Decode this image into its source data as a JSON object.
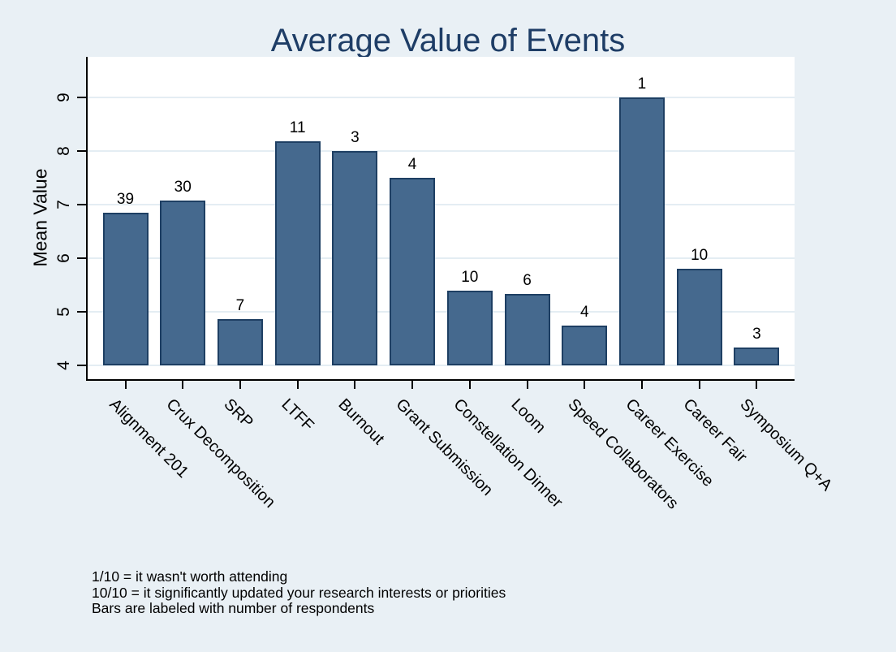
{
  "chart_data": {
    "type": "bar",
    "title": "Average Value of Events",
    "xlabel": "",
    "ylabel": "Mean Value",
    "ylim": [
      4,
      9.75
    ],
    "yticks": [
      4,
      5,
      6,
      7,
      8,
      9
    ],
    "grid": true,
    "legend": "none",
    "categories": [
      "Alignment 201",
      "Crux Decomposition",
      "SRP",
      "LTFF",
      "Burnout",
      "Grant Submission",
      "Constellation Dinner",
      "Loom",
      "Speed Collaborators",
      "Career Exercise",
      "Career Fair",
      "Symposium Q+A"
    ],
    "values": [
      6.85,
      7.07,
      4.86,
      8.18,
      8.0,
      7.5,
      5.4,
      5.33,
      4.75,
      9.0,
      5.8,
      4.33
    ],
    "bar_labels": [
      "39",
      "30",
      "7",
      "11",
      "3",
      "4",
      "10",
      "6",
      "4",
      "1",
      "10",
      "3"
    ],
    "bar_labels_meaning": "number of respondents",
    "colors": {
      "page_background": "#e9f0f5",
      "plot_background": "#ffffff",
      "gridline": "#e4edf3",
      "bar_fill": "#45698e",
      "bar_border": "#1e3f63",
      "title": "#1e3d66",
      "axis": "#000000",
      "text": "#000000"
    }
  },
  "notes": [
    "1/10 = it wasn't worth attending",
    "10/10 = it significantly updated your research interests or priorities",
    "Bars are labeled with number of respondents"
  ]
}
